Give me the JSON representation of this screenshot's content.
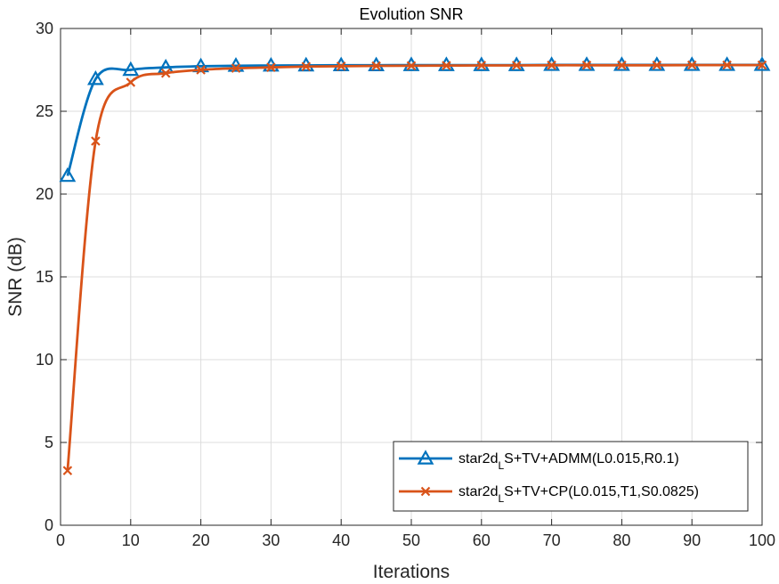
{
  "chart_data": {
    "type": "line",
    "title": "Evolution SNR",
    "xlabel": "Iterations",
    "ylabel": "SNR (dB)",
    "xlim": [
      0,
      100
    ],
    "ylim": [
      0,
      30
    ],
    "xticks": [
      0,
      10,
      20,
      30,
      40,
      50,
      60,
      70,
      80,
      90,
      100
    ],
    "yticks": [
      0,
      5,
      10,
      15,
      20,
      25,
      30
    ],
    "grid": true,
    "legend_position": "bottom-right",
    "x": [
      1,
      5,
      10,
      15,
      20,
      25,
      30,
      35,
      40,
      45,
      50,
      55,
      60,
      65,
      70,
      75,
      80,
      85,
      90,
      95,
      100
    ],
    "series": [
      {
        "name": "star2d_LS+TV+ADMM(L0.015,R0.1)",
        "legend_parts": [
          "star2d",
          "L",
          "S+TV+ADMM(L0.015,R0.1)"
        ],
        "color": "#0072BD",
        "marker": "triangle",
        "values": [
          21.1,
          26.95,
          27.5,
          27.65,
          27.72,
          27.75,
          27.76,
          27.77,
          27.78,
          27.78,
          27.79,
          27.79,
          27.79,
          27.79,
          27.8,
          27.8,
          27.8,
          27.8,
          27.8,
          27.8,
          27.8
        ]
      },
      {
        "name": "star2d_LS+TV+CP(L0.015,T1,S0.0825)",
        "legend_parts": [
          "star2d",
          "L",
          "S+TV+CP(L0.015,T1,S0.0825)"
        ],
        "color": "#D95319",
        "marker": "x",
        "values": [
          3.3,
          23.2,
          26.75,
          27.3,
          27.5,
          27.6,
          27.65,
          27.7,
          27.72,
          27.74,
          27.75,
          27.76,
          27.77,
          27.77,
          27.78,
          27.78,
          27.78,
          27.78,
          27.79,
          27.79,
          27.79
        ]
      }
    ]
  }
}
